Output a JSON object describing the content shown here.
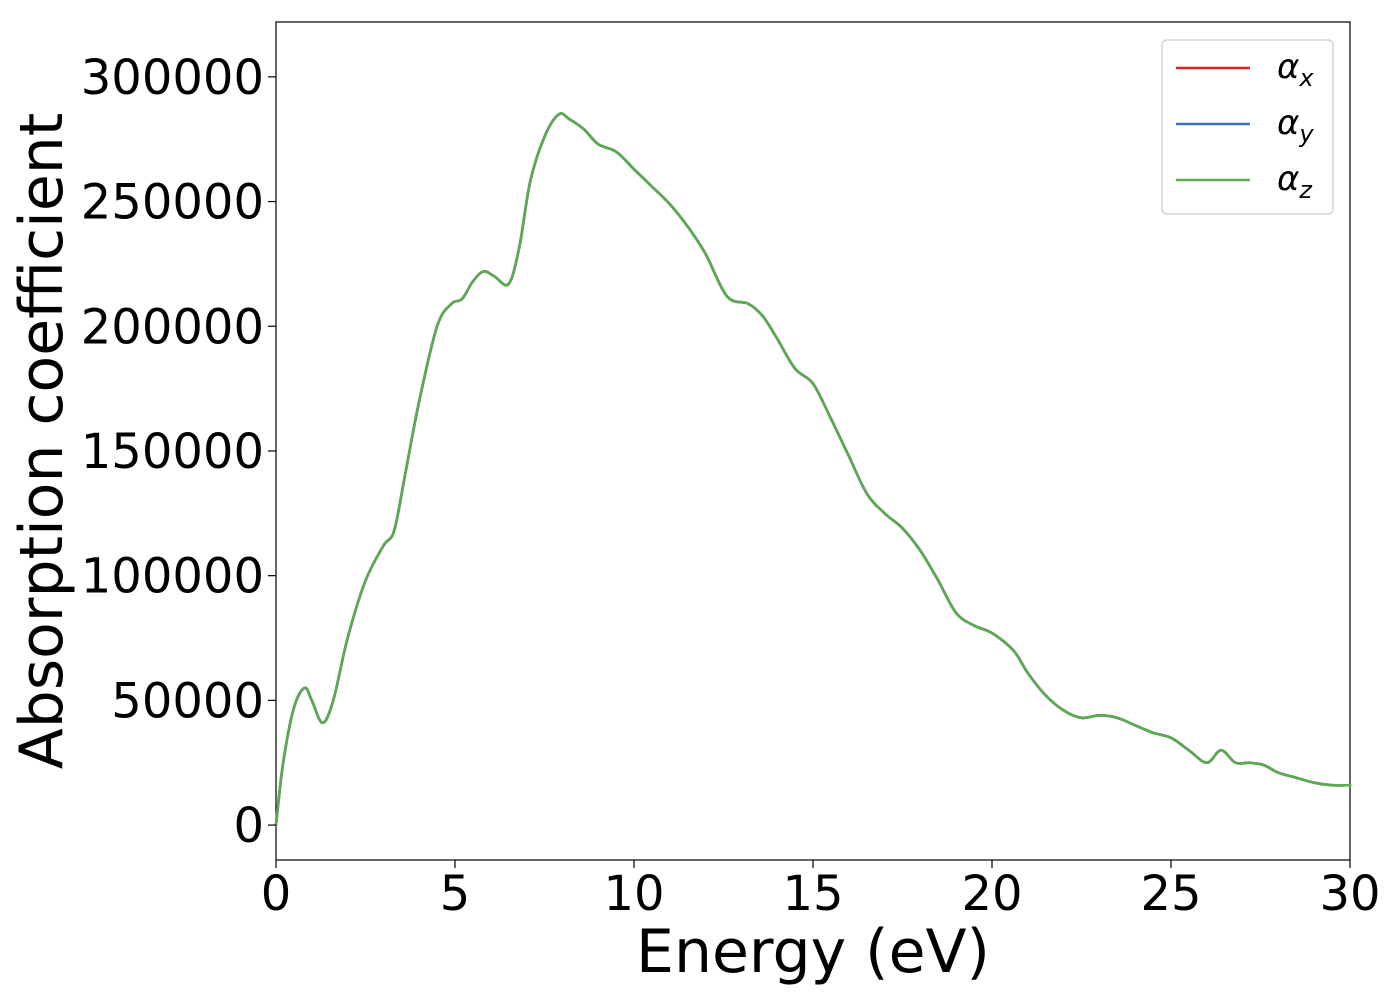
{
  "chart_data": {
    "type": "line",
    "title": "",
    "xlabel": "Energy (eV)",
    "ylabel": "Absorption coefficient",
    "xlim": [
      0,
      30
    ],
    "ylim": [
      -14000,
      322000
    ],
    "xticks": [
      0,
      5,
      10,
      15,
      20,
      25,
      30
    ],
    "yticks": [
      0,
      50000,
      100000,
      150000,
      200000,
      250000,
      300000
    ],
    "grid": false,
    "legend_position": "top-right",
    "series": [
      {
        "name": "α",
        "sub": "x",
        "color": "#d62728",
        "x": [
          0,
          0.2,
          0.5,
          0.8,
          1.0,
          1.3,
          1.6,
          2.0,
          2.5,
          3.0,
          3.3,
          3.6,
          4.0,
          4.5,
          4.9,
          5.2,
          5.5,
          5.8,
          6.1,
          6.5,
          6.8,
          7.1,
          7.5,
          7.9,
          8.2,
          8.6,
          9.0,
          9.5,
          10.0,
          10.5,
          11.0,
          11.5,
          12.0,
          12.6,
          13.2,
          13.6,
          14.0,
          14.5,
          15.0,
          15.5,
          16.0,
          16.5,
          17.0,
          17.5,
          18.0,
          18.5,
          19.0,
          19.5,
          20.0,
          20.6,
          21.0,
          21.5,
          22.0,
          22.5,
          23.0,
          23.5,
          24.0,
          24.5,
          25.0,
          25.5,
          26.0,
          26.4,
          26.8,
          27.2,
          27.6,
          28.0,
          28.5,
          29.0,
          29.5,
          30.0
        ],
        "values": [
          0,
          25000,
          47000,
          55000,
          50000,
          41000,
          50000,
          75000,
          98000,
          112000,
          118000,
          140000,
          170000,
          200000,
          209000,
          211000,
          218000,
          222000,
          220000,
          217000,
          232000,
          258000,
          276000,
          285000,
          283000,
          279000,
          273000,
          270000,
          263000,
          256000,
          249000,
          240000,
          229000,
          212000,
          209000,
          204000,
          195000,
          183000,
          177000,
          163000,
          148000,
          133000,
          125000,
          119000,
          110000,
          98000,
          85000,
          80000,
          77000,
          70000,
          61000,
          52000,
          46000,
          43000,
          44000,
          43000,
          40000,
          37000,
          35000,
          30000,
          25000,
          30000,
          25000,
          25000,
          24000,
          21000,
          19000,
          17000,
          16000,
          16000
        ]
      },
      {
        "name": "α",
        "sub": "y",
        "color": "#3b75af",
        "x": [
          0,
          0.2,
          0.5,
          0.8,
          1.0,
          1.3,
          1.6,
          2.0,
          2.5,
          3.0,
          3.3,
          3.6,
          4.0,
          4.5,
          4.9,
          5.2,
          5.5,
          5.8,
          6.1,
          6.5,
          6.8,
          7.1,
          7.5,
          7.9,
          8.2,
          8.6,
          9.0,
          9.5,
          10.0,
          10.5,
          11.0,
          11.5,
          12.0,
          12.6,
          13.2,
          13.6,
          14.0,
          14.5,
          15.0,
          15.5,
          16.0,
          16.5,
          17.0,
          17.5,
          18.0,
          18.5,
          19.0,
          19.5,
          20.0,
          20.6,
          21.0,
          21.5,
          22.0,
          22.5,
          23.0,
          23.5,
          24.0,
          24.5,
          25.0,
          25.5,
          26.0,
          26.4,
          26.8,
          27.2,
          27.6,
          28.0,
          28.5,
          29.0,
          29.5,
          30.0
        ],
        "values": [
          0,
          25000,
          47000,
          55000,
          50000,
          41000,
          50000,
          75000,
          98000,
          112000,
          118000,
          140000,
          170000,
          200000,
          209000,
          211000,
          218000,
          222000,
          220000,
          217000,
          232000,
          258000,
          276000,
          285000,
          283000,
          279000,
          273000,
          270000,
          263000,
          256000,
          249000,
          240000,
          229000,
          212000,
          209000,
          204000,
          195000,
          183000,
          177000,
          163000,
          148000,
          133000,
          125000,
          119000,
          110000,
          98000,
          85000,
          80000,
          77000,
          70000,
          61000,
          52000,
          46000,
          43000,
          44000,
          43000,
          40000,
          37000,
          35000,
          30000,
          25000,
          30000,
          25000,
          25000,
          24000,
          21000,
          19000,
          17000,
          16000,
          16000
        ]
      },
      {
        "name": "α",
        "sub": "z",
        "color": "#5aab4f",
        "x": [
          0,
          0.2,
          0.5,
          0.8,
          1.0,
          1.3,
          1.6,
          2.0,
          2.5,
          3.0,
          3.3,
          3.6,
          4.0,
          4.5,
          4.9,
          5.2,
          5.5,
          5.8,
          6.1,
          6.5,
          6.8,
          7.1,
          7.5,
          7.9,
          8.2,
          8.6,
          9.0,
          9.5,
          10.0,
          10.5,
          11.0,
          11.5,
          12.0,
          12.6,
          13.2,
          13.6,
          14.0,
          14.5,
          15.0,
          15.5,
          16.0,
          16.5,
          17.0,
          17.5,
          18.0,
          18.5,
          19.0,
          19.5,
          20.0,
          20.6,
          21.0,
          21.5,
          22.0,
          22.5,
          23.0,
          23.5,
          24.0,
          24.5,
          25.0,
          25.5,
          26.0,
          26.4,
          26.8,
          27.2,
          27.6,
          28.0,
          28.5,
          29.0,
          29.5,
          30.0
        ],
        "values": [
          0,
          25000,
          47000,
          55000,
          50000,
          41000,
          50000,
          75000,
          98000,
          112000,
          118000,
          140000,
          170000,
          200000,
          209000,
          211000,
          218000,
          222000,
          220000,
          217000,
          232000,
          258000,
          276000,
          285000,
          283000,
          279000,
          273000,
          270000,
          263000,
          256000,
          249000,
          240000,
          229000,
          212000,
          209000,
          204000,
          195000,
          183000,
          177000,
          163000,
          148000,
          133000,
          125000,
          119000,
          110000,
          98000,
          85000,
          80000,
          77000,
          70000,
          61000,
          52000,
          46000,
          43000,
          44000,
          43000,
          40000,
          37000,
          35000,
          30000,
          25000,
          30000,
          25000,
          25000,
          24000,
          21000,
          19000,
          17000,
          16000,
          16000
        ]
      }
    ]
  }
}
